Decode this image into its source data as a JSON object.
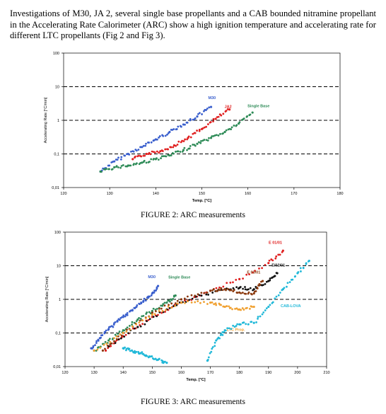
{
  "paragraph": "Investigations of M30, JA 2, several single base propellants and a CAB bounded nitramine propellant in the Accelerating Rate Calorimeter (ARC) show a high ignition temperature and accelerating rate for different LTC propellants (Fig 2 and Fig 3).",
  "caption2": "FIGURE 2:  ARC measurements",
  "caption3": "FIGURE 3: ARC measurements",
  "chart_data": [
    {
      "type": "scatter",
      "title": "",
      "xlabel": "Temp. [°C]",
      "ylabel": "Accelerating Rate [°C/min]",
      "xlim": [
        120,
        180
      ],
      "ylim": [
        0.01,
        100
      ],
      "yscale": "log",
      "xticks": [
        "120",
        "130",
        "140",
        "150",
        "160",
        "170",
        "180"
      ],
      "yticks": [
        "0,01",
        "0,1",
        "1",
        "10",
        "100"
      ],
      "grid": "dashed horizontal lines at 0,1 / 1 / 10",
      "series": [
        {
          "name": "M30",
          "color": "#3a5fcd",
          "marker": "triangle",
          "x": [
            128,
            131,
            134,
            137,
            140,
            143,
            146,
            149,
            152
          ],
          "y": [
            0.03,
            0.06,
            0.1,
            0.16,
            0.27,
            0.45,
            0.75,
            1.3,
            2.5
          ]
        },
        {
          "name": "JA2",
          "color": "#e02020",
          "marker": "diamond",
          "x": [
            135,
            138,
            141,
            144,
            147,
            150,
            153,
            156
          ],
          "y": [
            0.07,
            0.1,
            0.12,
            0.18,
            0.3,
            0.55,
            1.1,
            2.1
          ]
        },
        {
          "name": "Single Base",
          "color": "#2e8b57",
          "marker": "square",
          "x": [
            128,
            131,
            134,
            137,
            140,
            143,
            146,
            149,
            152,
            155,
            158,
            161
          ],
          "y": [
            0.03,
            0.04,
            0.045,
            0.055,
            0.07,
            0.09,
            0.13,
            0.2,
            0.3,
            0.45,
            0.8,
            1.7
          ]
        }
      ]
    },
    {
      "type": "scatter",
      "title": "",
      "xlabel": "Temp. [°C]",
      "ylabel": "Accelerating Rate [°C/min]",
      "xlim": [
        120,
        210
      ],
      "ylim": [
        0.01,
        100
      ],
      "yscale": "log",
      "xticks": [
        "120",
        "130",
        "140",
        "150",
        "160",
        "170",
        "180",
        "190",
        "200",
        "210"
      ],
      "yticks": [
        "0,01",
        "0,1",
        "1",
        "10",
        "100"
      ],
      "grid": "dashed horizontal lines at 0,1 / 1 / 10",
      "series": [
        {
          "name": "M30",
          "color": "#3a5fcd",
          "marker": "triangle",
          "x": [
            129,
            132,
            135,
            138,
            141,
            144,
            147,
            150,
            152
          ],
          "y": [
            0.035,
            0.07,
            0.13,
            0.22,
            0.35,
            0.55,
            0.9,
            1.5,
            2.5
          ]
        },
        {
          "name": "Single Base",
          "color": "#2e8b57",
          "marker": "square",
          "x": [
            130,
            135,
            140,
            145,
            150,
            155,
            158
          ],
          "y": [
            0.03,
            0.06,
            0.12,
            0.25,
            0.45,
            0.8,
            1.3
          ]
        },
        {
          "name": "E 01/01",
          "color": "#e02020",
          "marker": "dot",
          "x": [
            134,
            140,
            150,
            160,
            170,
            180,
            190,
            195
          ],
          "y": [
            0.03,
            0.08,
            0.3,
            0.8,
            1.8,
            4,
            12,
            28
          ]
        },
        {
          "name": "E/02/01",
          "color": "#111111",
          "marker": "dot",
          "x": [
            135,
            145,
            155,
            165,
            175,
            180,
            185,
            190,
            193
          ],
          "y": [
            0.04,
            0.15,
            0.5,
            1.2,
            2.0,
            2.2,
            2.0,
            3.5,
            6
          ]
        },
        {
          "name": "E 03/01",
          "color": "#8b3a0f",
          "marker": "dot",
          "x": [
            133,
            140,
            150,
            160,
            170,
            175,
            180,
            185,
            188
          ],
          "y": [
            0.03,
            0.1,
            0.4,
            1.0,
            1.8,
            2.0,
            1.6,
            1.5,
            3.5
          ]
        },
        {
          "name": "LTC Prop.",
          "color": "#f0a030",
          "marker": "dot",
          "x": [
            130,
            140,
            150,
            160,
            170,
            175,
            180,
            185
          ],
          "y": [
            0.03,
            0.1,
            0.35,
            0.8,
            0.8,
            0.6,
            0.5,
            0.6
          ]
        },
        {
          "name": "CAB-LOVA",
          "color": "#20b8d8",
          "marker": "dot",
          "x": [
            169,
            172,
            175,
            180,
            185,
            190,
            195,
            200,
            204
          ],
          "y": [
            0.015,
            0.06,
            0.12,
            0.18,
            0.2,
            0.6,
            2,
            6,
            14
          ]
        },
        {
          "name": "",
          "color": "#20b8d8",
          "marker": "dot",
          "x": [
            140,
            143,
            146,
            149,
            152,
            155
          ],
          "y": [
            0.035,
            0.03,
            0.025,
            0.02,
            0.016,
            0.013
          ]
        }
      ]
    }
  ]
}
